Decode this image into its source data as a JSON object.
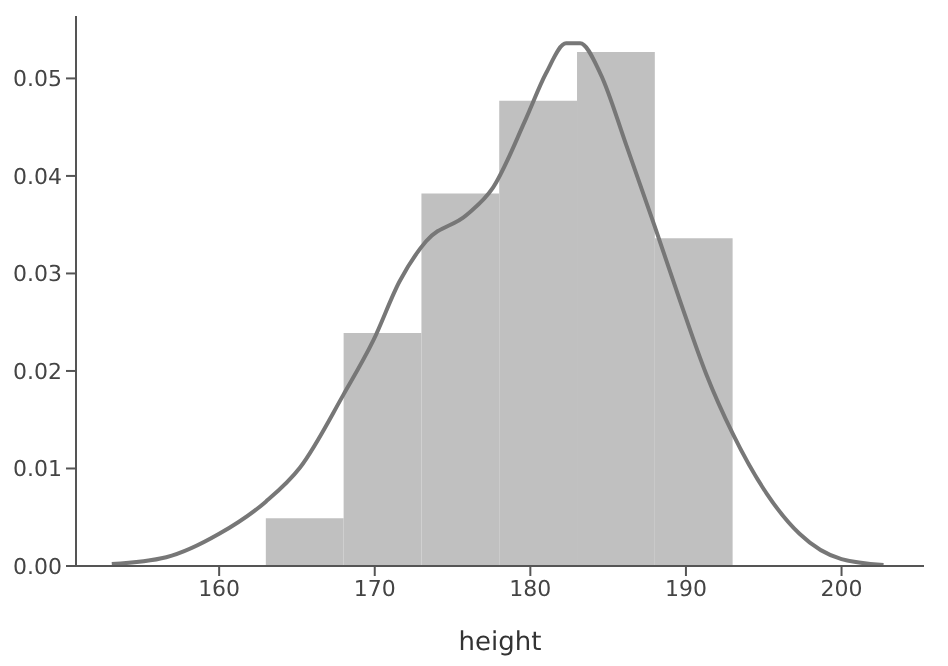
{
  "chart_data": {
    "type": "histogram",
    "xlabel": "height",
    "bins": [
      163,
      168,
      173,
      178,
      183,
      188,
      193
    ],
    "values": [
      0.0049,
      0.0239,
      0.0382,
      0.0477,
      0.0527,
      0.0336
    ],
    "color": "#c0c0c0",
    "series": [
      {
        "type": "line",
        "color": "#777777",
        "x": [
          153.1,
          156.6,
          160,
          163,
          165.2,
          168,
          169.9,
          171.6,
          173.3,
          175.9,
          177.6,
          179.7,
          181,
          182.3,
          183.2,
          184.5,
          186.2,
          188,
          189.6,
          191.3,
          193,
          195.2,
          197.3,
          200,
          202.7
        ],
        "values": [
          0.0002,
          0.0009,
          0.0033,
          0.0066,
          0.0101,
          0.0176,
          0.0231,
          0.0292,
          0.0333,
          0.036,
          0.0388,
          0.0458,
          0.0505,
          0.0536,
          0.0536,
          0.0505,
          0.043,
          0.0348,
          0.0273,
          0.0197,
          0.0136,
          0.0074,
          0.0033,
          0.0007,
          0.0001
        ]
      }
    ],
    "xlim": [
      150.8,
      205.3
    ],
    "xticks": [
      160,
      170,
      180,
      190,
      200
    ],
    "ylim": [
      0,
      0.0564
    ],
    "yticks": [
      {
        "value": 0,
        "label": "0.00"
      },
      {
        "value": 0.01,
        "label": "0.01"
      },
      {
        "value": 0.02,
        "label": "0.02"
      },
      {
        "value": 0.03,
        "label": "0.03"
      },
      {
        "value": 0.04,
        "label": "0.04"
      },
      {
        "value": 0.05,
        "label": "0.05"
      }
    ],
    "grid": false
  }
}
